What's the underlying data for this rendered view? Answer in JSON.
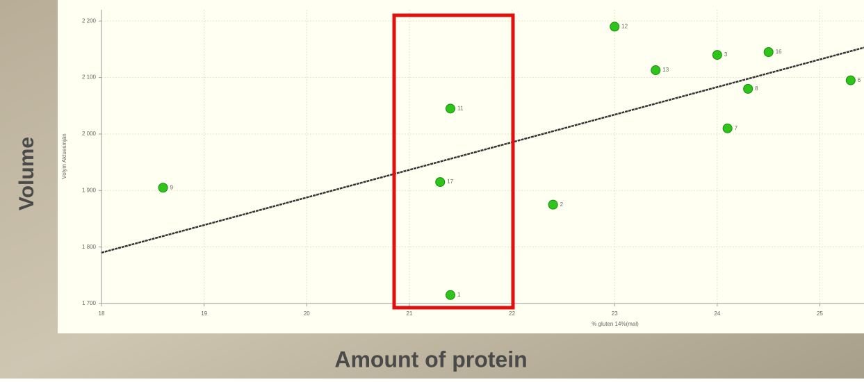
{
  "chart_data": {
    "type": "scatter",
    "x_label": "% gluten 14%(mal)",
    "y_label": "Volym Aktuesmjän",
    "outer_y_label": "Volume",
    "outer_x_label": "Amount of protein",
    "xlim": [
      18,
      25.43
    ],
    "ylim": [
      1700,
      2220
    ],
    "xticks": [
      18,
      19,
      20,
      21,
      22,
      23,
      24,
      25
    ],
    "yticks": [
      {
        "value": 1700,
        "label": "1 700"
      },
      {
        "value": 1800,
        "label": "1 800"
      },
      {
        "value": 1900,
        "label": "1 900"
      },
      {
        "value": 2000,
        "label": "2 000"
      },
      {
        "value": 2100,
        "label": "2 100"
      },
      {
        "value": 2200,
        "label": "2 200"
      }
    ],
    "grid": true,
    "color": "#2ec41a",
    "x": [
      18.6,
      21.4,
      21.3,
      21.4,
      22.4,
      23.0,
      23.4,
      24.0,
      24.5,
      24.3,
      24.1,
      25.3
    ],
    "values": [
      1905,
      2045,
      1915,
      1715,
      1875,
      2190,
      2113,
      2140,
      2145,
      2080,
      2010,
      2095
    ],
    "point_labels": [
      "9",
      "11",
      "17",
      "1",
      "2",
      "12",
      "13",
      "3",
      "16",
      "8",
      "7",
      "6"
    ],
    "trend_line": {
      "x": [
        18,
        25.43
      ],
      "y": [
        1790,
        2153
      ],
      "color": "#333333"
    }
  }
}
